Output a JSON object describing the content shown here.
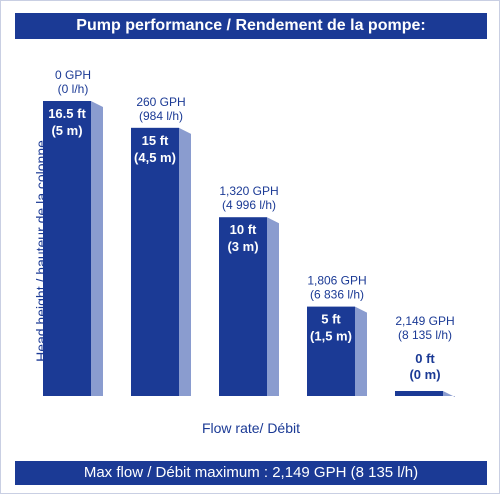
{
  "colors": {
    "bar_front": "#1b3a95",
    "bar_side": "#8a9ccf",
    "bar_depth": "#5a72b8",
    "text": "#1b3a95"
  },
  "chart_data": {
    "type": "bar",
    "title": "Pump performance / Rendement de la pompe:",
    "xlabel": "Flow rate/ Débit",
    "ylabel": "Head height / hauteur de la colonne",
    "footer": "Max flow / Débit maximum : 2,149 GPH (8 135 l/h)",
    "ylim": [
      0,
      16.5
    ],
    "grid": false,
    "bars": [
      {
        "flow_gph": "0 GPH",
        "flow_lh": "(0 l/h)",
        "head_ft_label": "16.5 ft",
        "head_m_label": "(5 m)",
        "value": 16.5
      },
      {
        "flow_gph": "260 GPH",
        "flow_lh": "(984 l/h)",
        "head_ft_label": "15 ft",
        "head_m_label": "(4,5 m)",
        "value": 15
      },
      {
        "flow_gph": "1,320 GPH",
        "flow_lh": "(4 996 l/h)",
        "head_ft_label": "10 ft",
        "head_m_label": "(3 m)",
        "value": 10
      },
      {
        "flow_gph": "1,806 GPH",
        "flow_lh": "(6 836 l/h)",
        "head_ft_label": "5 ft",
        "head_m_label": "(1,5 m)",
        "value": 5
      },
      {
        "flow_gph": "2,149 GPH",
        "flow_lh": "(8 135 l/h)",
        "head_ft_label": "0 ft",
        "head_m_label": "(0 m)",
        "value": 0
      }
    ]
  }
}
